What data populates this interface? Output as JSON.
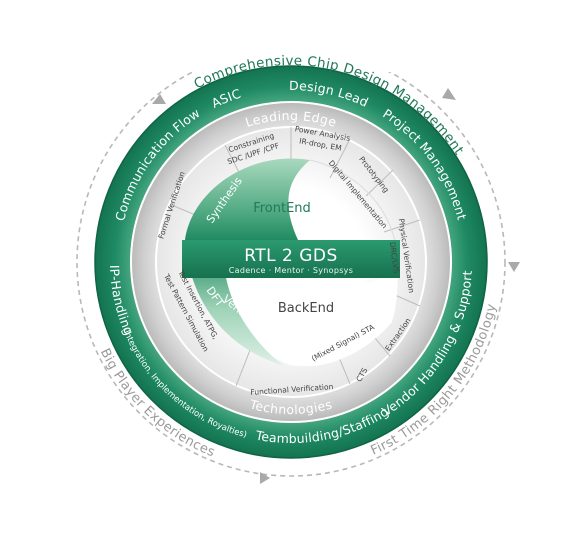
{
  "outer_labels": {
    "top": "Comprehensive Chip Design Management",
    "left_bottom": "Big Player Experiences",
    "right_bottom": "First Time Right Methodology"
  },
  "green_ring": {
    "asic": "ASIC",
    "design_lead": "Design Lead",
    "project_management": "Project Management",
    "vendor_handling": "Vendor Handling & Support",
    "teambuilding": "Teambuilding/Staffing",
    "ip_handling": "IP-Handling",
    "ip_handling_detail": "(Integration, Implementation, Royalties)",
    "communication_flow": "Communication Flow"
  },
  "gray_ring": {
    "leading_edge": "Leading Edge",
    "technologies": "Technologies"
  },
  "segments": {
    "constraining_1": "Constraining",
    "constraining_2": "SDC /UPF /CPF",
    "power_1": "Power Analysis",
    "power_2": "IR-drop, EM",
    "prototyping": "Prototyping",
    "physical_verification_1": "Physical Verification",
    "physical_verification_2": "DRC/LVS",
    "extraction": "Extraction",
    "sta": "(Mixed Signal) STA",
    "cts": "CTS",
    "functional_verification": "Functional Verification",
    "test_1": "Test Insertion, ATPG,",
    "test_2": "Test Pattern Simulation",
    "formal_verification": "Formal Verification",
    "digital_implementation": "Digital Implementation"
  },
  "core": {
    "frontend": "FrontEnd",
    "backend": "BackEnd",
    "synthesis": "Synthesis",
    "dft": "DFT",
    "verification": "Verification",
    "banner": "RTL 2 GDS",
    "vendors": "Cadence · Mentor · Synopsys"
  }
}
